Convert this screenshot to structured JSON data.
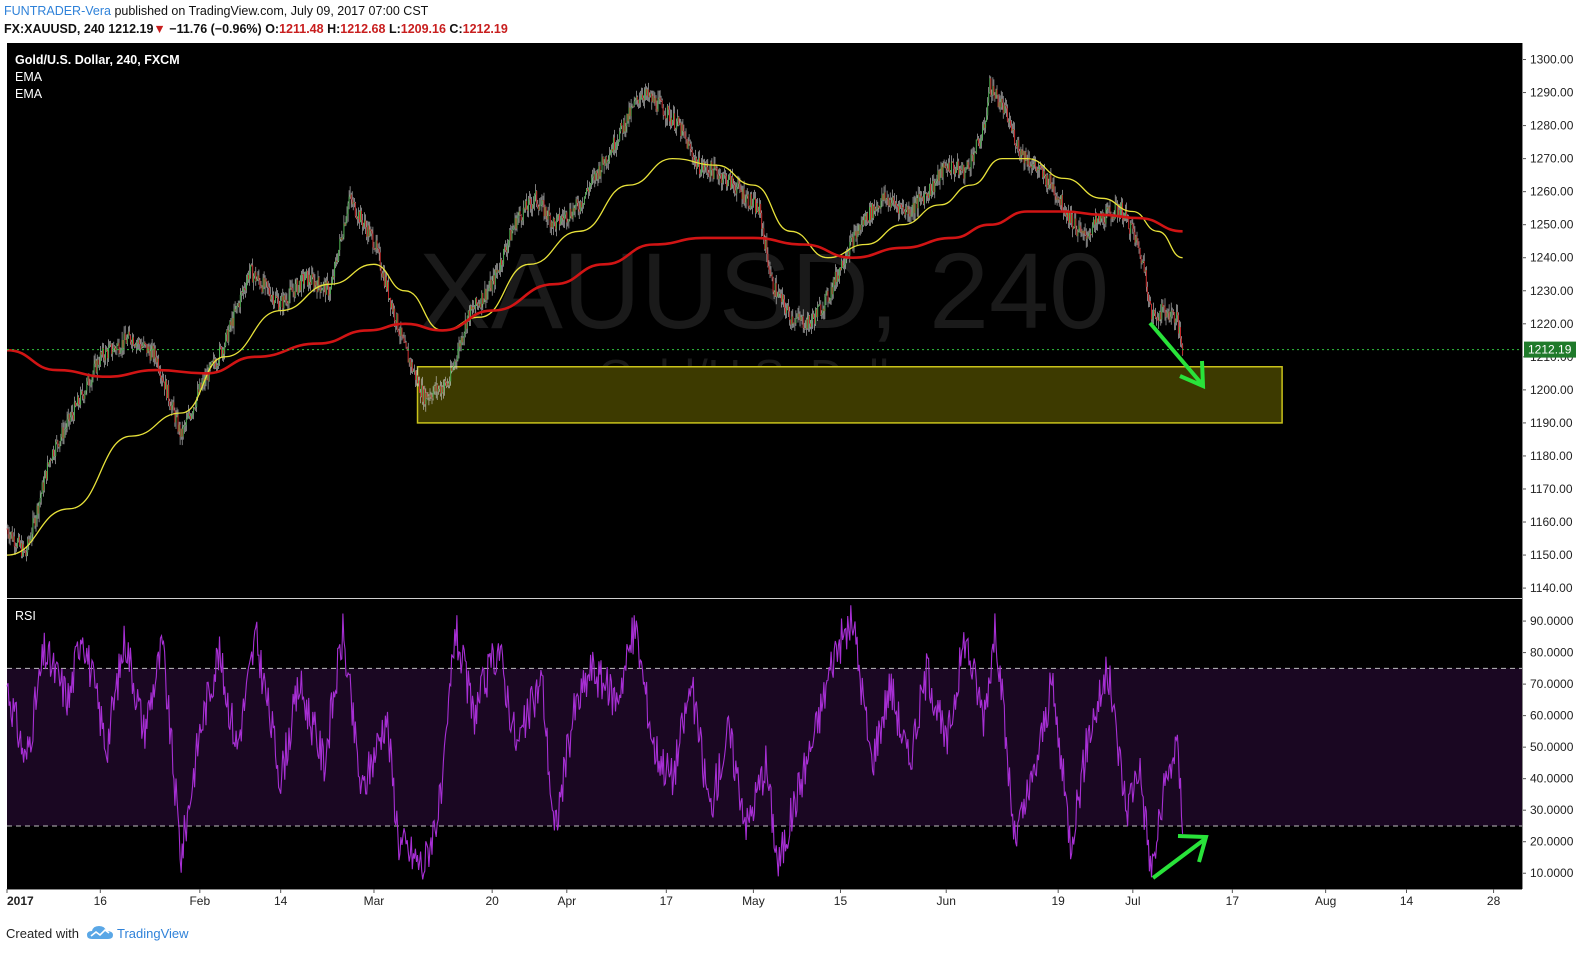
{
  "header": {
    "author": "FUNTRADER-Vera",
    "published_text": " published on TradingView.com, July 09, 2017 07:00 CST",
    "symbol": "FX:XAUUSD, 240",
    "last": "1212.19",
    "down_marker": "▼",
    "change": "−11.76 (−0.96%)",
    "o_label": "O:",
    "o_value": "1211.48",
    "h_label": "H:",
    "h_value": "1212.68",
    "l_label": "L:",
    "l_value": "1209.16",
    "c_label": "C:",
    "c_value": "1212.19"
  },
  "footer": {
    "created_with": "Created with",
    "brand": "TradingView"
  },
  "colors": {
    "background": "#000000",
    "candle_up": "#4caf50",
    "candle_down": "#c62828",
    "ema_fast": "#e8e23a",
    "ema_slow": "#d11414",
    "rsi_line": "#a72fd4",
    "rsi_band": "#1a0722",
    "zone_fill": "#3d3a00",
    "zone_border": "#c9c21a",
    "arrow": "#29e33a",
    "last_price_tag": "#1f7a2a"
  },
  "chart_data": [
    {
      "type": "candlestick",
      "title": "Gold/U.S. Dollar, 240, FXCM",
      "watermark": "XAUUSD, 240",
      "watermark_sub": "Gold/U.S. Dollar",
      "indicators": [
        "EMA",
        "EMA"
      ],
      "ylim": [
        1137,
        1305
      ],
      "y_ticks": [
        "1140.00",
        "1150.00",
        "1160.00",
        "1170.00",
        "1180.00",
        "1190.00",
        "1200.00",
        "1210.00",
        "1220.00",
        "1230.00",
        "1240.00",
        "1250.00",
        "1260.00",
        "1270.00",
        "1280.00",
        "1290.00",
        "1300.00"
      ],
      "last_price": "1212.19",
      "close_path": [
        {
          "day": 0,
          "v": 1158
        },
        {
          "day": 3,
          "v": 1150
        },
        {
          "day": 7,
          "v": 1180
        },
        {
          "day": 12,
          "v": 1198
        },
        {
          "day": 15,
          "v": 1210
        },
        {
          "day": 20,
          "v": 1216
        },
        {
          "day": 24,
          "v": 1210
        },
        {
          "day": 28,
          "v": 1186
        },
        {
          "day": 31,
          "v": 1200
        },
        {
          "day": 35,
          "v": 1214
        },
        {
          "day": 39,
          "v": 1236
        },
        {
          "day": 44,
          "v": 1226
        },
        {
          "day": 48,
          "v": 1234
        },
        {
          "day": 52,
          "v": 1230
        },
        {
          "day": 55,
          "v": 1258
        },
        {
          "day": 59,
          "v": 1245
        },
        {
          "day": 62,
          "v": 1225
        },
        {
          "day": 64,
          "v": 1212
        },
        {
          "day": 67,
          "v": 1198
        },
        {
          "day": 71,
          "v": 1202
        },
        {
          "day": 74,
          "v": 1222
        },
        {
          "day": 78,
          "v": 1232
        },
        {
          "day": 82,
          "v": 1252
        },
        {
          "day": 85,
          "v": 1258
        },
        {
          "day": 88,
          "v": 1250
        },
        {
          "day": 92,
          "v": 1256
        },
        {
          "day": 95,
          "v": 1266
        },
        {
          "day": 98,
          "v": 1276
        },
        {
          "day": 102,
          "v": 1290
        },
        {
          "day": 105,
          "v": 1286
        },
        {
          "day": 108,
          "v": 1280
        },
        {
          "day": 111,
          "v": 1268
        },
        {
          "day": 114,
          "v": 1266
        },
        {
          "day": 117,
          "v": 1262
        },
        {
          "day": 121,
          "v": 1254
        },
        {
          "day": 123,
          "v": 1232
        },
        {
          "day": 126,
          "v": 1222
        },
        {
          "day": 129,
          "v": 1220
        },
        {
          "day": 132,
          "v": 1228
        },
        {
          "day": 135,
          "v": 1242
        },
        {
          "day": 138,
          "v": 1252
        },
        {
          "day": 141,
          "v": 1258
        },
        {
          "day": 145,
          "v": 1254
        },
        {
          "day": 149,
          "v": 1262
        },
        {
          "day": 151,
          "v": 1268
        },
        {
          "day": 154,
          "v": 1266
        },
        {
          "day": 157,
          "v": 1278
        },
        {
          "day": 158,
          "v": 1292
        },
        {
          "day": 160,
          "v": 1286
        },
        {
          "day": 163,
          "v": 1272
        },
        {
          "day": 165,
          "v": 1268
        },
        {
          "day": 168,
          "v": 1262
        },
        {
          "day": 170,
          "v": 1255
        },
        {
          "day": 173,
          "v": 1246
        },
        {
          "day": 176,
          "v": 1252
        },
        {
          "day": 179,
          "v": 1255
        },
        {
          "day": 181,
          "v": 1248
        },
        {
          "day": 183,
          "v": 1236
        },
        {
          "day": 184,
          "v": 1222
        },
        {
          "day": 186,
          "v": 1224
        },
        {
          "day": 188,
          "v": 1222
        },
        {
          "day": 189,
          "v": 1212
        }
      ],
      "ema_fast": [
        {
          "day": 0,
          "v": 1150
        },
        {
          "day": 10,
          "v": 1164
        },
        {
          "day": 20,
          "v": 1186
        },
        {
          "day": 28,
          "v": 1193
        },
        {
          "day": 35,
          "v": 1210
        },
        {
          "day": 44,
          "v": 1224
        },
        {
          "day": 52,
          "v": 1232
        },
        {
          "day": 59,
          "v": 1238
        },
        {
          "day": 64,
          "v": 1230
        },
        {
          "day": 70,
          "v": 1218
        },
        {
          "day": 76,
          "v": 1222
        },
        {
          "day": 84,
          "v": 1238
        },
        {
          "day": 92,
          "v": 1248
        },
        {
          "day": 100,
          "v": 1262
        },
        {
          "day": 107,
          "v": 1270
        },
        {
          "day": 114,
          "v": 1268
        },
        {
          "day": 120,
          "v": 1262
        },
        {
          "day": 126,
          "v": 1248
        },
        {
          "day": 132,
          "v": 1240
        },
        {
          "day": 138,
          "v": 1244
        },
        {
          "day": 144,
          "v": 1250
        },
        {
          "day": 150,
          "v": 1256
        },
        {
          "day": 155,
          "v": 1262
        },
        {
          "day": 160,
          "v": 1270
        },
        {
          "day": 164,
          "v": 1270
        },
        {
          "day": 170,
          "v": 1264
        },
        {
          "day": 176,
          "v": 1258
        },
        {
          "day": 181,
          "v": 1254
        },
        {
          "day": 185,
          "v": 1248
        },
        {
          "day": 189,
          "v": 1240
        }
      ],
      "ema_slow": [
        {
          "day": 0,
          "v": 1212
        },
        {
          "day": 8,
          "v": 1206
        },
        {
          "day": 16,
          "v": 1204
        },
        {
          "day": 24,
          "v": 1206
        },
        {
          "day": 32,
          "v": 1205
        },
        {
          "day": 40,
          "v": 1210
        },
        {
          "day": 50,
          "v": 1214
        },
        {
          "day": 58,
          "v": 1218
        },
        {
          "day": 64,
          "v": 1220
        },
        {
          "day": 70,
          "v": 1218
        },
        {
          "day": 78,
          "v": 1224
        },
        {
          "day": 88,
          "v": 1232
        },
        {
          "day": 96,
          "v": 1238
        },
        {
          "day": 104,
          "v": 1244
        },
        {
          "day": 112,
          "v": 1246
        },
        {
          "day": 120,
          "v": 1246
        },
        {
          "day": 128,
          "v": 1244
        },
        {
          "day": 136,
          "v": 1240
        },
        {
          "day": 144,
          "v": 1243
        },
        {
          "day": 152,
          "v": 1246
        },
        {
          "day": 158,
          "v": 1250
        },
        {
          "day": 164,
          "v": 1254
        },
        {
          "day": 170,
          "v": 1254
        },
        {
          "day": 176,
          "v": 1253
        },
        {
          "day": 182,
          "v": 1252
        },
        {
          "day": 189,
          "v": 1248
        }
      ],
      "zone": {
        "day_start": 66,
        "day_end": 205,
        "low": 1190,
        "high": 1207
      }
    },
    {
      "type": "line",
      "title": "RSI",
      "ylim": [
        5,
        97
      ],
      "y_ticks": [
        "10.0000",
        "20.0000",
        "30.0000",
        "40.0000",
        "50.0000",
        "60.0000",
        "70.0000",
        "80.0000",
        "90.0000"
      ],
      "bands": [
        25,
        75
      ],
      "anchors": [
        {
          "day": 0,
          "v": 70
        },
        {
          "day": 3,
          "v": 45
        },
        {
          "day": 6,
          "v": 80
        },
        {
          "day": 10,
          "v": 65
        },
        {
          "day": 12,
          "v": 88
        },
        {
          "day": 16,
          "v": 50
        },
        {
          "day": 19,
          "v": 85
        },
        {
          "day": 22,
          "v": 55
        },
        {
          "day": 25,
          "v": 82
        },
        {
          "day": 28,
          "v": 15
        },
        {
          "day": 31,
          "v": 55
        },
        {
          "day": 34,
          "v": 80
        },
        {
          "day": 37,
          "v": 50
        },
        {
          "day": 40,
          "v": 85
        },
        {
          "day": 44,
          "v": 40
        },
        {
          "day": 47,
          "v": 70
        },
        {
          "day": 51,
          "v": 45
        },
        {
          "day": 54,
          "v": 86
        },
        {
          "day": 57,
          "v": 35
        },
        {
          "day": 61,
          "v": 60
        },
        {
          "day": 63,
          "v": 20
        },
        {
          "day": 67,
          "v": 12
        },
        {
          "day": 70,
          "v": 35
        },
        {
          "day": 72,
          "v": 88
        },
        {
          "day": 75,
          "v": 60
        },
        {
          "day": 79,
          "v": 82
        },
        {
          "day": 82,
          "v": 50
        },
        {
          "day": 86,
          "v": 72
        },
        {
          "day": 88,
          "v": 22
        },
        {
          "day": 91,
          "v": 60
        },
        {
          "day": 94,
          "v": 75
        },
        {
          "day": 98,
          "v": 65
        },
        {
          "day": 101,
          "v": 88
        },
        {
          "day": 104,
          "v": 50
        },
        {
          "day": 107,
          "v": 40
        },
        {
          "day": 110,
          "v": 70
        },
        {
          "day": 113,
          "v": 30
        },
        {
          "day": 116,
          "v": 55
        },
        {
          "day": 119,
          "v": 25
        },
        {
          "day": 122,
          "v": 45
        },
        {
          "day": 124,
          "v": 12
        },
        {
          "day": 127,
          "v": 35
        },
        {
          "day": 130,
          "v": 55
        },
        {
          "day": 133,
          "v": 80
        },
        {
          "day": 136,
          "v": 90
        },
        {
          "day": 139,
          "v": 45
        },
        {
          "day": 142,
          "v": 70
        },
        {
          "day": 145,
          "v": 45
        },
        {
          "day": 148,
          "v": 75
        },
        {
          "day": 151,
          "v": 50
        },
        {
          "day": 154,
          "v": 85
        },
        {
          "day": 157,
          "v": 60
        },
        {
          "day": 159,
          "v": 88
        },
        {
          "day": 162,
          "v": 20
        },
        {
          "day": 165,
          "v": 40
        },
        {
          "day": 168,
          "v": 70
        },
        {
          "day": 171,
          "v": 20
        },
        {
          "day": 174,
          "v": 55
        },
        {
          "day": 177,
          "v": 74
        },
        {
          "day": 180,
          "v": 30
        },
        {
          "day": 182,
          "v": 45
        },
        {
          "day": 184,
          "v": 10
        },
        {
          "day": 186,
          "v": 35
        },
        {
          "day": 188,
          "v": 52
        },
        {
          "day": 189,
          "v": 28
        }
      ]
    }
  ],
  "x_axis": {
    "labels": [
      {
        "day": 0,
        "text": "2017",
        "bold": true
      },
      {
        "day": 15,
        "text": "16"
      },
      {
        "day": 31,
        "text": "Feb"
      },
      {
        "day": 44,
        "text": "14"
      },
      {
        "day": 59,
        "text": "Mar"
      },
      {
        "day": 78,
        "text": "20"
      },
      {
        "day": 90,
        "text": "Apr"
      },
      {
        "day": 106,
        "text": "17"
      },
      {
        "day": 120,
        "text": "May"
      },
      {
        "day": 134,
        "text": "15"
      },
      {
        "day": 151,
        "text": "Jun"
      },
      {
        "day": 169,
        "text": "19"
      },
      {
        "day": 181,
        "text": "Jul"
      },
      {
        "day": 197,
        "text": "17"
      },
      {
        "day": 212,
        "text": "Aug"
      },
      {
        "day": 225,
        "text": "14"
      },
      {
        "day": 239,
        "text": "28"
      }
    ]
  }
}
